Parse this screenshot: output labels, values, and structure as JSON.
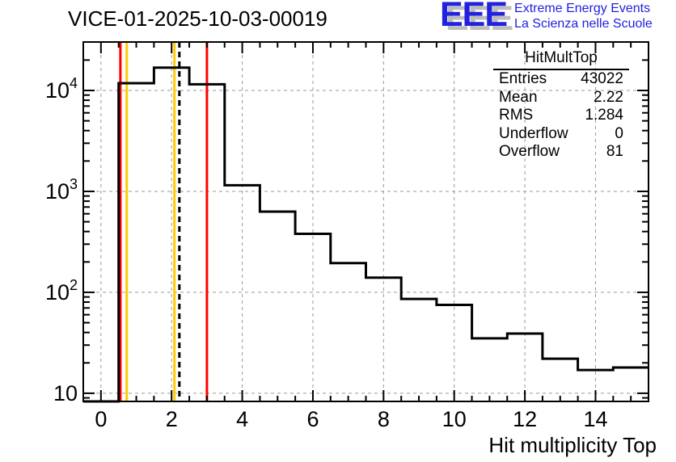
{
  "header": {
    "title": "VICE-01-2025-10-03-00019"
  },
  "logo": {
    "acronym": "EEE",
    "line1": "Extreme Energy Events",
    "line2": "La Scienza nelle Scuole",
    "color": "#2121de",
    "shadow_color": "#bdbdbd"
  },
  "stats_box": {
    "title": "HitMultTop",
    "rows": [
      {
        "label": "Entries",
        "value": "43022"
      },
      {
        "label": "Mean",
        "value": "2.22"
      },
      {
        "label": "RMS",
        "value": "1.284"
      },
      {
        "label": "Underflow",
        "value": "0"
      },
      {
        "label": "Overflow",
        "value": "81"
      }
    ]
  },
  "chart_data": {
    "type": "bar",
    "subtype": "step-histogram",
    "title": "VICE-01-2025-10-03-00019",
    "xlabel": "Hit multiplicity Top",
    "ylabel": "",
    "y_scale": "log",
    "grid": true,
    "x_range": [
      -0.5,
      15.5
    ],
    "y_range": [
      8.3,
      30200
    ],
    "bin_centers": [
      0,
      1,
      2,
      3,
      4,
      5,
      6,
      7,
      8,
      9,
      10,
      11,
      12,
      13,
      14,
      15
    ],
    "bin_width": 1,
    "counts": [
      0,
      11800,
      16800,
      11500,
      1150,
      630,
      380,
      195,
      140,
      86,
      75,
      35,
      39,
      22,
      17,
      18
    ],
    "underflow": 0,
    "overflow": 81,
    "x_major_ticks": [
      0,
      2,
      4,
      6,
      8,
      10,
      12,
      14
    ],
    "x_tick_labels": [
      "0",
      "2",
      "4",
      "6",
      "8",
      "10",
      "12",
      "14"
    ],
    "x_minor_step": 0.5,
    "y_major_ticks": [
      10,
      100,
      1000,
      10000
    ],
    "y_tick_labels": [
      {
        "base": "10",
        "exp": ""
      },
      {
        "base": "10",
        "exp": "2"
      },
      {
        "base": "10",
        "exp": "3"
      },
      {
        "base": "10",
        "exp": "4"
      }
    ],
    "marker_lines": [
      {
        "x": 0.55,
        "color": "#ff0000",
        "style": "solid",
        "name": "red-marker-line-low"
      },
      {
        "x": 0.73,
        "color": "#ffcc00",
        "style": "solid",
        "name": "yellow-marker-line-low"
      },
      {
        "x": 2.08,
        "color": "#ffcc00",
        "style": "solid",
        "name": "yellow-marker-line-high"
      },
      {
        "x": 2.22,
        "color": "#000000",
        "style": "dashed",
        "name": "mean-dashed-line"
      },
      {
        "x": 3.0,
        "color": "#ff0000",
        "style": "solid",
        "name": "red-marker-line-high"
      }
    ],
    "colors": {
      "histogram": "#000000",
      "frame": "#000000",
      "grid": "#9a9a9a"
    }
  }
}
